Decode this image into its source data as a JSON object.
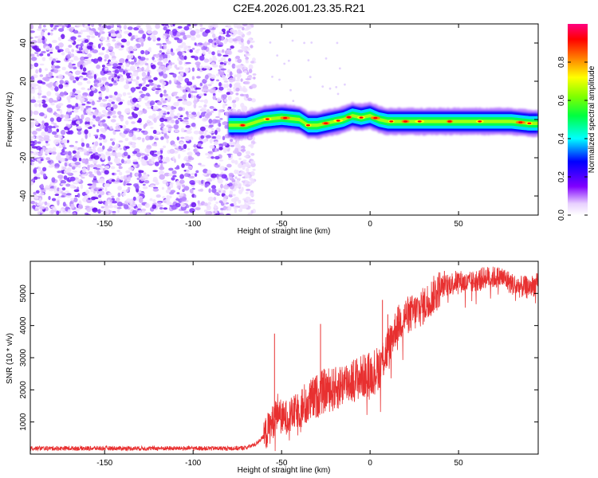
{
  "title": "C2E4.2026.001.23.35.R21",
  "chart_data": [
    {
      "type": "heatmap",
      "xlabel": "Height of straight line (km)",
      "ylabel": "Frequency (Hz)",
      "xlim": [
        -192,
        95
      ],
      "ylim": [
        -50,
        50
      ],
      "xticks": [
        -150,
        -100,
        -50,
        0,
        50
      ],
      "xtick_labels": [
        "-150",
        "-100",
        "-50",
        "0",
        "50"
      ],
      "yticks": [
        -40,
        -20,
        0,
        20,
        40
      ],
      "ytick_labels": [
        "-40",
        "-20",
        "0",
        "20",
        "40"
      ],
      "noise_region_x": [
        -192,
        -68
      ],
      "signal_start_x": -80,
      "signal_trace": {
        "x": [
          -80,
          -70,
          -60,
          -50,
          -40,
          -35,
          -30,
          -25,
          -20,
          -15,
          -10,
          -5,
          0,
          5,
          10,
          15,
          20,
          30,
          40,
          50,
          60,
          70,
          80,
          90,
          95
        ],
        "freq": [
          -3,
          -3,
          0,
          1,
          0,
          -3,
          -3,
          -2,
          -1,
          0,
          2,
          1,
          2,
          0,
          -1,
          -1,
          -1,
          -1,
          -1,
          -1,
          -1,
          -1,
          -1,
          -2,
          -2
        ]
      },
      "colorbar": {
        "label": "Normalized spectral amplitude",
        "range": [
          0,
          1
        ],
        "ticks": [
          0,
          0.2,
          0.4,
          0.6,
          0.8
        ],
        "tick_labels": [
          "0.0",
          "0.2",
          "0.4",
          "0.6",
          "0.8"
        ],
        "colormap": [
          "#ffffff",
          "#8000ff",
          "#0000ff",
          "#00ffff",
          "#00ff00",
          "#ffff00",
          "#ff8000",
          "#ff0000",
          "#ff00a0"
        ]
      },
      "grid": false
    },
    {
      "type": "line",
      "xlabel": "Height of straight line (km)",
      "ylabel": "SNR (10 * v/v)",
      "xlim": [
        -192,
        95
      ],
      "ylim": [
        0,
        6000
      ],
      "xticks": [
        -150,
        -100,
        -50,
        0,
        50
      ],
      "xtick_labels": [
        "-150",
        "-100",
        "-50",
        "0",
        "50"
      ],
      "yticks": [
        1000,
        2000,
        3000,
        4000,
        5000
      ],
      "ytick_labels": [
        "1000",
        "2000",
        "3000",
        "4000",
        "5000"
      ],
      "series_color": "#e83030",
      "grid": false,
      "series": [
        {
          "x": [
            -192,
            -150,
            -100,
            -75,
            -70,
            -65,
            -60,
            -55,
            -52,
            -50,
            -45,
            -40,
            -35,
            -30,
            -25,
            -20,
            -15,
            -10,
            -5,
            0,
            5,
            10,
            15,
            20,
            25,
            30,
            35,
            40,
            45,
            50,
            55,
            60,
            65,
            70,
            75,
            80,
            85,
            90,
            95
          ],
          "values": [
            180,
            180,
            180,
            180,
            200,
            300,
            550,
            1000,
            1400,
            1100,
            1200,
            1400,
            1600,
            1800,
            2000,
            2000,
            2200,
            2300,
            2400,
            2500,
            2700,
            3300,
            4000,
            4300,
            4400,
            4600,
            4900,
            5200,
            5300,
            5400,
            5300,
            5400,
            5500,
            5500,
            5500,
            5300,
            5200,
            5200,
            5300
          ]
        }
      ],
      "spikes": [
        {
          "x": -54,
          "value": 3750
        },
        {
          "x": -28,
          "value": 4050
        },
        {
          "x": 7,
          "value": 4800
        },
        {
          "x": 10,
          "value": 4350
        },
        {
          "x": 42,
          "value": 5700
        },
        {
          "x": 67,
          "value": 5800
        },
        {
          "x": 95,
          "value": 4000
        }
      ]
    }
  ]
}
